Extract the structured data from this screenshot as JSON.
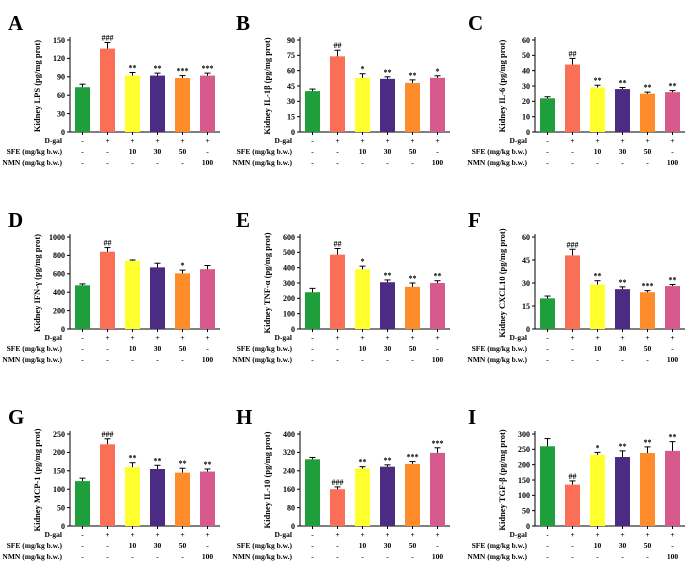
{
  "colors": [
    "#1f9e3c",
    "#fa6f55",
    "#ffff2e",
    "#4c2c82",
    "#ff8c2a",
    "#d65a8e"
  ],
  "chart_data": [
    {
      "type": "bar",
      "letter": "A",
      "ylabel": "Kidney LPS (pg/mg prot)",
      "ylim": [
        0,
        150
      ],
      "yticks": [
        "0",
        "30",
        "60",
        "90",
        "120",
        "150"
      ],
      "values": [
        73,
        136,
        92,
        92,
        88,
        92
      ],
      "errors": [
        5,
        10,
        5,
        4,
        4,
        4
      ],
      "significance": [
        "",
        "###",
        "**",
        "**",
        "***",
        "***"
      ],
      "treatment_rows": [
        {
          "label": "D-gal",
          "values": [
            "-",
            "+",
            "+",
            "+",
            "+",
            "+"
          ]
        },
        {
          "label": "SFE (mg/kg b.w.)",
          "values": [
            "-",
            "-",
            "10",
            "30",
            "50",
            "-"
          ]
        },
        {
          "label": "NMN (mg/kg b.w.)",
          "values": [
            "-",
            "-",
            "-",
            "-",
            "-",
            "100"
          ]
        }
      ]
    },
    {
      "type": "bar",
      "letter": "B",
      "ylabel": "Kidney IL-1β (pg/mg prot)",
      "ylim": [
        0,
        90
      ],
      "yticks": [
        "0",
        "15",
        "30",
        "45",
        "60",
        "75",
        "90"
      ],
      "values": [
        40,
        74,
        53,
        52,
        48,
        53
      ],
      "errors": [
        2,
        6,
        4,
        2,
        3,
        2
      ],
      "significance": [
        "",
        "##",
        "*",
        "**",
        "**",
        "*"
      ],
      "treatment_rows": [
        {
          "label": "D-gal",
          "values": [
            "-",
            "+",
            "+",
            "+",
            "+",
            "+"
          ]
        },
        {
          "label": "SFE (mg/kg b.w.)",
          "values": [
            "-",
            "-",
            "10",
            "30",
            "50",
            "-"
          ]
        },
        {
          "label": "NMN (mg/kg b.w.)",
          "values": [
            "-",
            "-",
            "-",
            "-",
            "-",
            "100"
          ]
        }
      ]
    },
    {
      "type": "bar",
      "letter": "C",
      "ylabel": "Kidney IL-6 (pg/mg prot)",
      "ylim": [
        0,
        60
      ],
      "yticks": [
        "0",
        "10",
        "20",
        "30",
        "40",
        "50",
        "60"
      ],
      "values": [
        22,
        44,
        29,
        28,
        25,
        26
      ],
      "errors": [
        1,
        4,
        1.5,
        1,
        1,
        1
      ],
      "significance": [
        "",
        "##",
        "**",
        "**",
        "**",
        "**"
      ],
      "treatment_rows": [
        {
          "label": "D-gal",
          "values": [
            "-",
            "+",
            "+",
            "+",
            "+",
            "+"
          ]
        },
        {
          "label": "SFE (mg/kg b.w.)",
          "values": [
            "-",
            "-",
            "10",
            "30",
            "50",
            "-"
          ]
        },
        {
          "label": "NMN (mg/kg b.w.)",
          "values": [
            "-",
            "-",
            "-",
            "-",
            "-",
            "100"
          ]
        }
      ]
    },
    {
      "type": "bar",
      "letter": "D",
      "ylabel": "Kidney IFN-γ (pg/mg prot)",
      "ylim": [
        0,
        1000
      ],
      "yticks": [
        "0",
        "200",
        "400",
        "600",
        "800",
        "1000"
      ],
      "values": [
        475,
        840,
        740,
        670,
        605,
        650
      ],
      "errors": [
        15,
        45,
        10,
        45,
        35,
        40
      ],
      "significance": [
        "",
        "##",
        "",
        "",
        "*",
        ""
      ],
      "treatment_rows": [
        {
          "label": "D-gal",
          "values": [
            "-",
            "+",
            "+",
            "+",
            "+",
            "+"
          ]
        },
        {
          "label": "SFE (mg/kg b.w.)",
          "values": [
            "-",
            "-",
            "10",
            "30",
            "50",
            "-"
          ]
        },
        {
          "label": "NMN (mg/kg b.w.)",
          "values": [
            "-",
            "-",
            "-",
            "-",
            "-",
            "100"
          ]
        }
      ]
    },
    {
      "type": "bar",
      "letter": "E",
      "ylabel": "Kidney TNF-α (pg/mg prot)",
      "ylim": [
        0,
        600
      ],
      "yticks": [
        "0",
        "100",
        "200",
        "300",
        "400",
        "500",
        "600"
      ],
      "values": [
        240,
        485,
        390,
        305,
        275,
        300
      ],
      "errors": [
        25,
        40,
        20,
        15,
        25,
        15
      ],
      "significance": [
        "",
        "##",
        "*",
        "**",
        "**",
        "**"
      ],
      "treatment_rows": [
        {
          "label": "D-gal",
          "values": [
            "-",
            "+",
            "+",
            "+",
            "+",
            "+"
          ]
        },
        {
          "label": "SFE (mg/kg b.w.)",
          "values": [
            "-",
            "-",
            "10",
            "30",
            "50",
            "-"
          ]
        },
        {
          "label": "NMN (mg/kg b.w.)",
          "values": [
            "-",
            "-",
            "-",
            "-",
            "-",
            "100"
          ]
        }
      ]
    },
    {
      "type": "bar",
      "letter": "F",
      "ylabel": "Kidney CXCL10 (pg/mg prot)",
      "ylim": [
        0,
        60
      ],
      "yticks": [
        "0",
        "15",
        "30",
        "45",
        "60"
      ],
      "values": [
        20,
        48,
        29,
        26,
        24,
        28
      ],
      "errors": [
        1.5,
        4,
        2.5,
        1.5,
        1,
        1
      ],
      "significance": [
        "",
        "###",
        "**",
        "**",
        "***",
        "**"
      ],
      "treatment_rows": [
        {
          "label": "D-gal",
          "values": [
            "-",
            "+",
            "+",
            "+",
            "+",
            "+"
          ]
        },
        {
          "label": "SFE (mg/kg b.w.)",
          "values": [
            "-",
            "-",
            "10",
            "30",
            "50",
            "-"
          ]
        },
        {
          "label": "NMN (mg/kg b.w.)",
          "values": [
            "-",
            "-",
            "-",
            "-",
            "-",
            "100"
          ]
        }
      ]
    },
    {
      "type": "bar",
      "letter": "G",
      "ylabel": "Kidney MCP-1 (pg/mg prot)",
      "ylim": [
        0,
        250
      ],
      "yticks": [
        "0",
        "50",
        "100",
        "150",
        "200",
        "250"
      ],
      "values": [
        122,
        222,
        160,
        155,
        145,
        148
      ],
      "errors": [
        8,
        15,
        12,
        10,
        12,
        7
      ],
      "significance": [
        "",
        "###",
        "**",
        "**",
        "**",
        "**"
      ],
      "treatment_rows": [
        {
          "label": "D-gal",
          "values": [
            "-",
            "+",
            "+",
            "+",
            "+",
            "+"
          ]
        },
        {
          "label": "SFE (mg/kg b.w.)",
          "values": [
            "-",
            "-",
            "10",
            "30",
            "50",
            "-"
          ]
        },
        {
          "label": "NMN (mg/kg b.w.)",
          "values": [
            "-",
            "-",
            "-",
            "-",
            "-",
            "100"
          ]
        }
      ]
    },
    {
      "type": "bar",
      "letter": "H",
      "ylabel": "Kidney IL-10 (pg/mg prot)",
      "ylim": [
        0,
        400
      ],
      "yticks": [
        "0",
        "80",
        "160",
        "240",
        "320",
        "400"
      ],
      "values": [
        290,
        160,
        250,
        258,
        270,
        318
      ],
      "errors": [
        8,
        10,
        8,
        8,
        10,
        22
      ],
      "significance": [
        "",
        "###",
        "**",
        "**",
        "***",
        "***"
      ],
      "treatment_rows": [
        {
          "label": "D-gal",
          "values": [
            "-",
            "+",
            "+",
            "+",
            "+",
            "+"
          ]
        },
        {
          "label": "SFE (mg/kg b.w.)",
          "values": [
            "-",
            "-",
            "10",
            "30",
            "50",
            "-"
          ]
        },
        {
          "label": "NMN (mg/kg b.w.)",
          "values": [
            "-",
            "-",
            "-",
            "-",
            "-",
            "100"
          ]
        }
      ]
    },
    {
      "type": "bar",
      "letter": "I",
      "ylabel": "Kidney TGF-β (pg/mg prot)",
      "ylim": [
        0,
        300
      ],
      "yticks": [
        "0",
        "50",
        "100",
        "150",
        "200",
        "250",
        "300"
      ],
      "values": [
        260,
        135,
        232,
        225,
        238,
        245
      ],
      "errors": [
        25,
        12,
        8,
        20,
        20,
        30
      ],
      "significance": [
        "",
        "##",
        "*",
        "**",
        "**",
        "**"
      ],
      "treatment_rows": [
        {
          "label": "D-gal",
          "values": [
            "-",
            "+",
            "+",
            "+",
            "+",
            "+"
          ]
        },
        {
          "label": "SFE (mg/kg b.w.)",
          "values": [
            "-",
            "-",
            "10",
            "30",
            "50",
            "-"
          ]
        },
        {
          "label": "NMN (mg/kg b.w.)",
          "values": [
            "-",
            "-",
            "-",
            "-",
            "-",
            "100"
          ]
        }
      ]
    }
  ]
}
